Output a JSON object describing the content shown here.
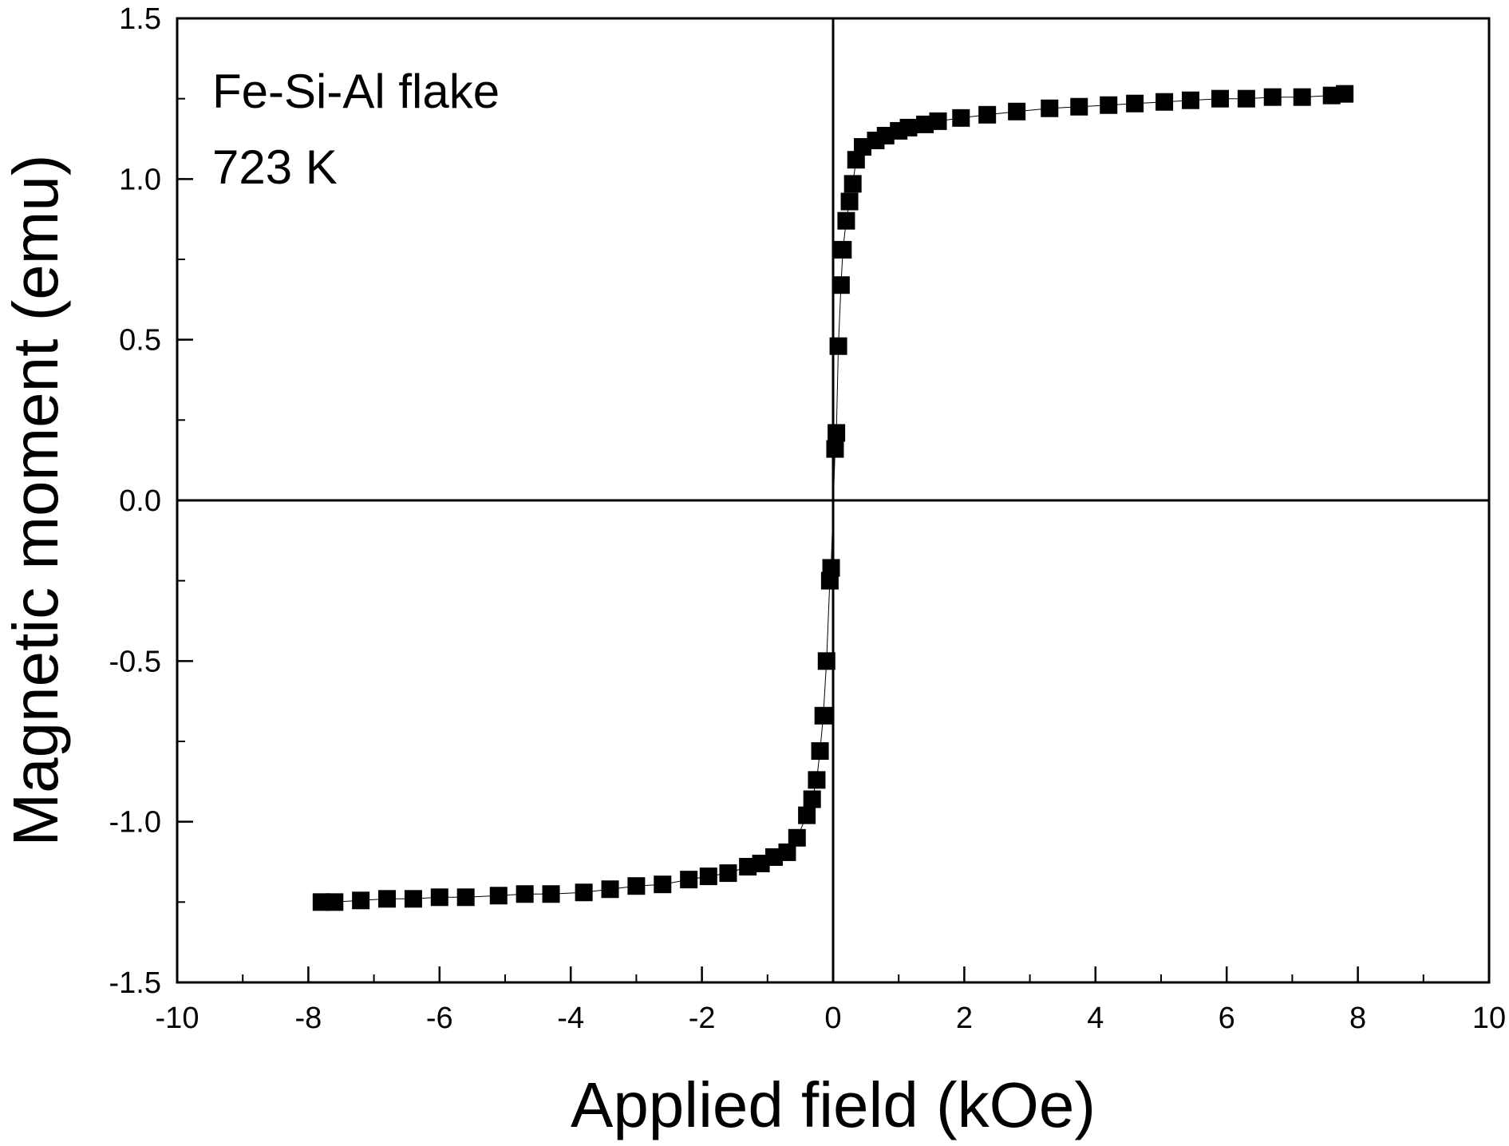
{
  "chart_data": {
    "type": "scatter",
    "xlabel": "Applied field (kOe)",
    "ylabel": "Magnetic moment (emu)",
    "xlim": [
      -10,
      10
    ],
    "ylim": [
      -1.5,
      1.5
    ],
    "xticks": [
      -10,
      -8,
      -6,
      -4,
      -2,
      0,
      2,
      4,
      6,
      8,
      10
    ],
    "xtick_labels": [
      "-10",
      "-8",
      "-6",
      "-4",
      "-2",
      "0",
      "2",
      "4",
      "6",
      "8",
      "10"
    ],
    "yticks": [
      -1.5,
      -1.0,
      -0.5,
      0.0,
      0.5,
      1.0,
      1.5
    ],
    "ytick_labels": [
      "-1.5",
      "-1.0",
      "-0.5",
      "0.0",
      "0.5",
      "1.0",
      "1.5"
    ],
    "minor_x_step": 1,
    "minor_y_step": 0.25,
    "grid": false,
    "zero_lines": true,
    "marker": "square",
    "marker_color": "#000000",
    "annotations": [
      "Fe-Si-Al flake",
      "723 K"
    ],
    "series": [
      {
        "x": [
          -7.8,
          -7.6,
          -7.2,
          -6.8,
          -6.4,
          -6.0,
          -5.6,
          -5.1,
          -4.7,
          -4.3,
          -3.8,
          -3.4,
          -3.0,
          -2.6,
          -2.2,
          -1.9,
          -1.6,
          -1.3,
          -1.1,
          -0.9,
          -0.7,
          -0.55,
          -0.4,
          -0.32,
          -0.25,
          -0.2,
          -0.15,
          -0.1,
          -0.05,
          -0.03
        ],
        "y": [
          -1.25,
          -1.25,
          -1.245,
          -1.24,
          -1.24,
          -1.235,
          -1.235,
          -1.23,
          -1.225,
          -1.225,
          -1.22,
          -1.21,
          -1.2,
          -1.195,
          -1.18,
          -1.17,
          -1.16,
          -1.14,
          -1.13,
          -1.11,
          -1.095,
          -1.05,
          -0.98,
          -0.93,
          -0.87,
          -0.78,
          -0.67,
          -0.5,
          -0.25,
          -0.21
        ]
      },
      {
        "x": [
          0.03,
          0.05,
          0.08,
          0.12,
          0.15,
          0.2,
          0.25,
          0.3,
          0.35,
          0.45,
          0.65,
          0.8,
          1.0,
          1.15,
          1.4,
          1.6,
          1.95,
          2.35,
          2.8,
          3.3,
          3.75,
          4.2,
          4.6,
          5.05,
          5.45,
          5.9,
          6.3,
          6.7,
          7.15,
          7.6,
          7.8
        ],
        "y": [
          0.16,
          0.21,
          0.48,
          0.67,
          0.78,
          0.87,
          0.93,
          0.985,
          1.06,
          1.1,
          1.12,
          1.135,
          1.15,
          1.16,
          1.17,
          1.18,
          1.19,
          1.2,
          1.21,
          1.22,
          1.225,
          1.23,
          1.235,
          1.24,
          1.245,
          1.25,
          1.25,
          1.255,
          1.255,
          1.26,
          1.265
        ]
      }
    ]
  }
}
